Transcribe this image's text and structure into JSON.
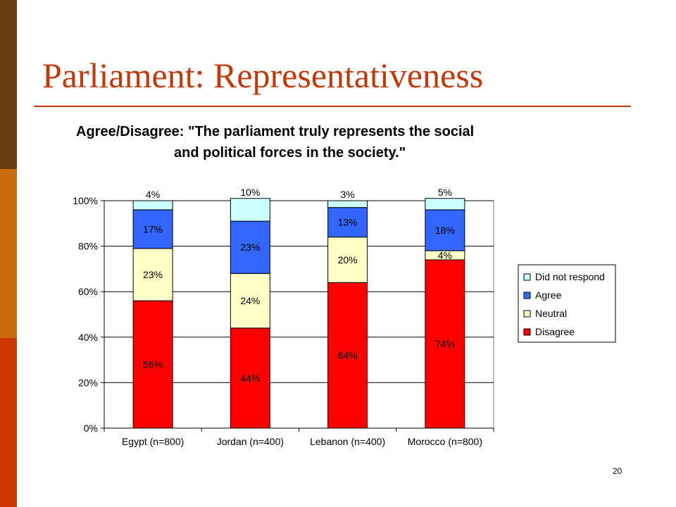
{
  "slide": {
    "title": "Parliament: Representativeness",
    "page_number": "20"
  },
  "colors": {
    "title": "#c0390b",
    "sidebar": [
      "#6b3a0f",
      "#cc6a12",
      "#cc3a00"
    ]
  },
  "chart_data": {
    "type": "bar",
    "stacked": true,
    "title_line1": "Agree/Disagree: \"The parliament truly represents the social",
    "title_line2": "and political forces in the society.\"",
    "categories": [
      "Egypt (n=800)",
      "Jordan (n=400)",
      "Lebanon (n=400)",
      "Morocco (n=800)"
    ],
    "series": [
      {
        "name": "Disagree",
        "color": "#ff0000",
        "values": [
          56,
          44,
          64,
          74
        ]
      },
      {
        "name": "Neutral",
        "color": "#ffffc8",
        "values": [
          23,
          24,
          20,
          4
        ]
      },
      {
        "name": "Agree",
        "color": "#3366ff",
        "values": [
          17,
          23,
          13,
          18
        ]
      },
      {
        "name": "Did not respond",
        "color": "#ccffff",
        "values": [
          4,
          10,
          3,
          5
        ]
      }
    ],
    "segment_labels": [
      [
        "56%",
        "44%",
        "64%",
        "74%"
      ],
      [
        "23%",
        "24%",
        "20%",
        "4%"
      ],
      [
        "17%",
        "23%",
        "13%",
        "18%"
      ],
      [
        "4%",
        "10%",
        "3%",
        "5%"
      ]
    ],
    "y_ticks": [
      "0%",
      "20%",
      "40%",
      "60%",
      "80%",
      "100%"
    ],
    "ylim": [
      0,
      100
    ],
    "legend_order": [
      "Did not respond",
      "Agree",
      "Neutral",
      "Disagree"
    ],
    "legend_position": "right",
    "grid": true
  }
}
